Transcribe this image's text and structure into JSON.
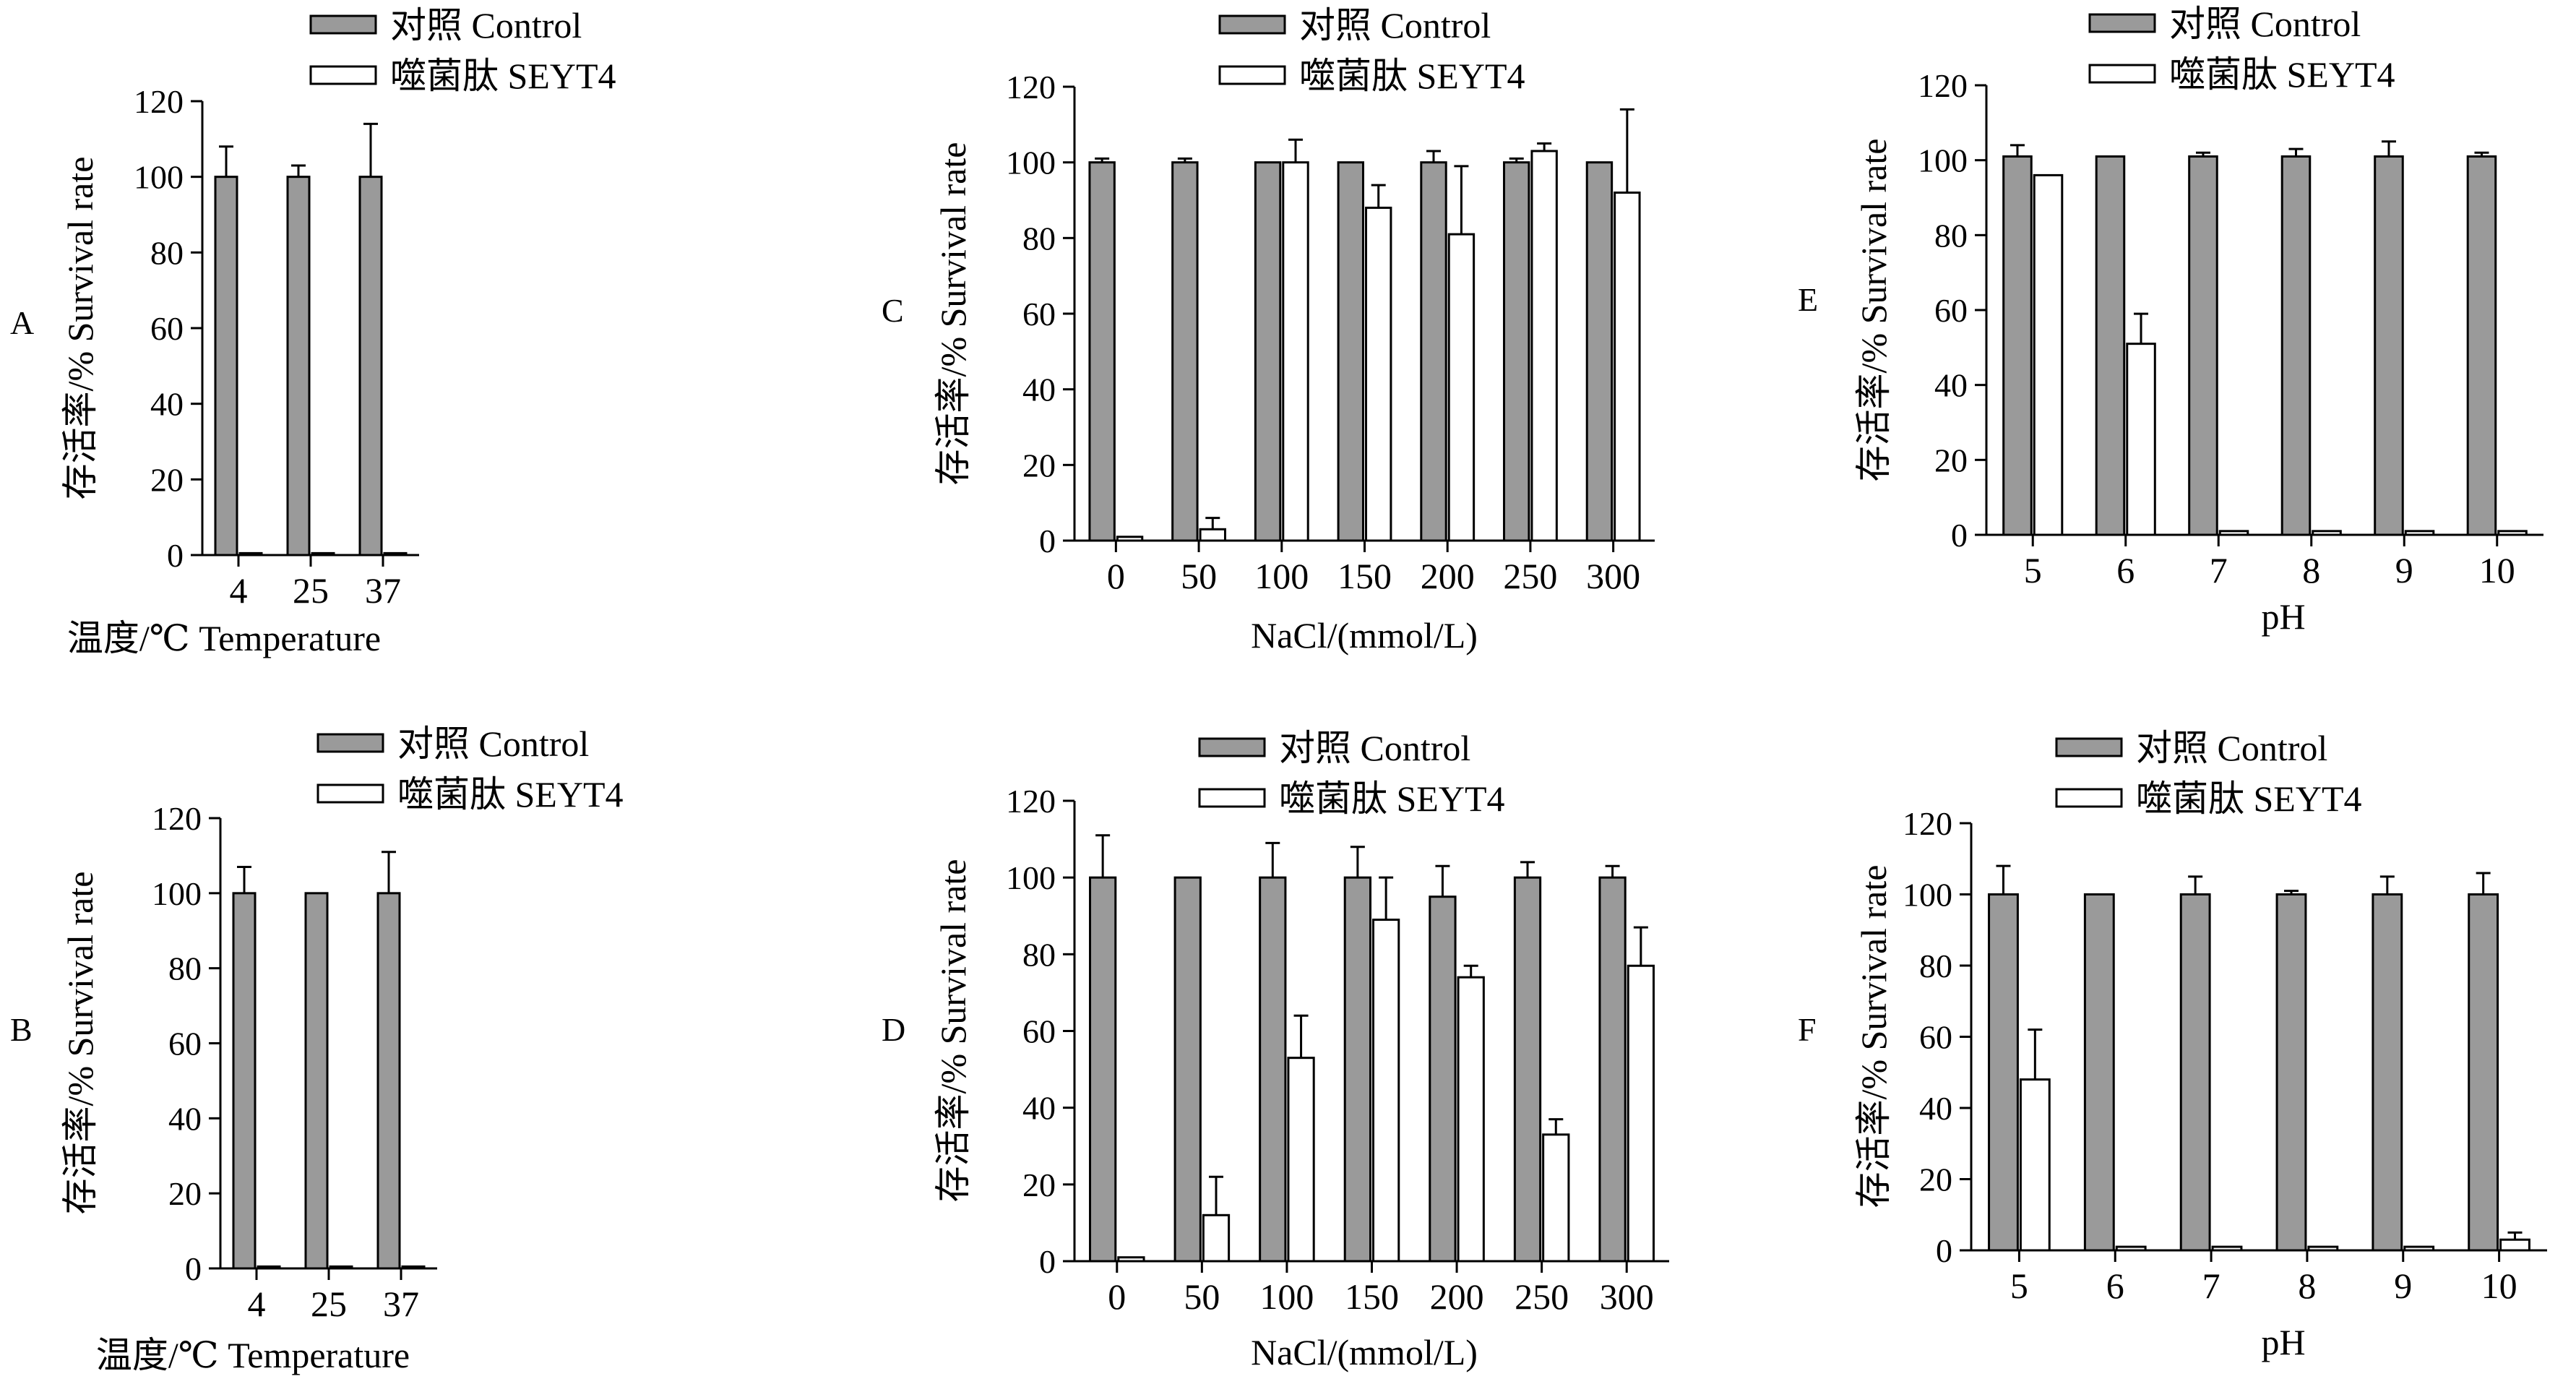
{
  "legend": {
    "control": "对照 Control",
    "phage": "噬菌肽 SEYT4"
  },
  "colors": {
    "control_fill": "#9a9a9a",
    "phage_fill": "#ffffff",
    "stroke": "#000000"
  },
  "chart_data": [
    {
      "panel": "A",
      "type": "bar",
      "ylabel": "存活率/% Survival rate",
      "xlabel": "温度/℃ Temperature",
      "ylim": [
        0,
        120
      ],
      "yticks": [
        0,
        20,
        40,
        60,
        80,
        100,
        120
      ],
      "categories": [
        "4",
        "25",
        "37"
      ],
      "series": [
        {
          "name": "对照 Control",
          "values": [
            100,
            100,
            100
          ],
          "errors": [
            8,
            3,
            14
          ]
        },
        {
          "name": "噬菌肽 SEYT4",
          "values": [
            0.5,
            0.5,
            0.5
          ],
          "errors": [
            0,
            0,
            0
          ]
        }
      ]
    },
    {
      "panel": "B",
      "type": "bar",
      "ylabel": "存活率/% Survival rate",
      "xlabel": "温度/℃ Temperature",
      "ylim": [
        0,
        120
      ],
      "yticks": [
        0,
        20,
        40,
        60,
        80,
        100,
        120
      ],
      "categories": [
        "4",
        "25",
        "37"
      ],
      "series": [
        {
          "name": "对照 Control",
          "values": [
            100,
            100,
            100
          ],
          "errors": [
            7,
            0,
            11
          ]
        },
        {
          "name": "噬菌肽 SEYT4",
          "values": [
            0.5,
            0.5,
            0.5
          ],
          "errors": [
            0,
            0,
            0
          ]
        }
      ]
    },
    {
      "panel": "C",
      "type": "bar",
      "ylabel": "存活率/% Survival rate",
      "xlabel": "NaCl/(mmol/L)",
      "ylim": [
        0,
        120
      ],
      "yticks": [
        0,
        20,
        40,
        60,
        80,
        100,
        120
      ],
      "categories": [
        "0",
        "50",
        "100",
        "150",
        "200",
        "250",
        "300"
      ],
      "series": [
        {
          "name": "对照 Control",
          "values": [
            100,
            100,
            100,
            100,
            100,
            100,
            100
          ],
          "errors": [
            1,
            1,
            0,
            0,
            3,
            1,
            0
          ]
        },
        {
          "name": "噬菌肽 SEYT4",
          "values": [
            1,
            3,
            100,
            88,
            81,
            103,
            92
          ],
          "errors": [
            0,
            3,
            6,
            6,
            18,
            2,
            22
          ]
        }
      ]
    },
    {
      "panel": "D",
      "type": "bar",
      "ylabel": "存活率/% Survival rate",
      "xlabel": "NaCl/(mmol/L)",
      "ylim": [
        0,
        120
      ],
      "yticks": [
        0,
        20,
        40,
        60,
        80,
        100,
        120
      ],
      "categories": [
        "0",
        "50",
        "100",
        "150",
        "200",
        "250",
        "300"
      ],
      "series": [
        {
          "name": "对照 Control",
          "values": [
            100,
            100,
            100,
            100,
            95,
            100,
            100
          ],
          "errors": [
            11,
            0,
            9,
            8,
            8,
            4,
            3
          ]
        },
        {
          "name": "噬菌肽 SEYT4",
          "values": [
            1,
            12,
            53,
            89,
            74,
            33,
            77
          ],
          "errors": [
            0,
            10,
            11,
            11,
            3,
            4,
            10
          ]
        }
      ]
    },
    {
      "panel": "E",
      "type": "bar",
      "ylabel": "存活率/% Survival rate",
      "xlabel": "pH",
      "ylim": [
        0,
        120
      ],
      "yticks": [
        0,
        20,
        40,
        60,
        80,
        100,
        120
      ],
      "categories": [
        "5",
        "6",
        "7",
        "8",
        "9",
        "10"
      ],
      "series": [
        {
          "name": "对照 Control",
          "values": [
            101,
            101,
            101,
            101,
            101,
            101
          ],
          "errors": [
            3,
            0,
            1,
            2,
            4,
            1
          ]
        },
        {
          "name": "噬菌肽 SEYT4",
          "values": [
            96,
            51,
            1,
            1,
            1,
            1
          ],
          "errors": [
            0,
            8,
            0,
            0,
            0,
            0
          ]
        }
      ]
    },
    {
      "panel": "F",
      "type": "bar",
      "ylabel": "存活率/% Survival rate",
      "xlabel": "pH",
      "ylim": [
        0,
        120
      ],
      "yticks": [
        0,
        20,
        40,
        60,
        80,
        100,
        120
      ],
      "categories": [
        "5",
        "6",
        "7",
        "8",
        "9",
        "10"
      ],
      "series": [
        {
          "name": "对照 Control",
          "values": [
            100,
            100,
            100,
            100,
            100,
            100
          ],
          "errors": [
            8,
            0,
            5,
            1,
            5,
            6
          ]
        },
        {
          "name": "噬菌肽 SEYT4",
          "values": [
            48,
            1,
            1,
            1,
            1,
            3
          ],
          "errors": [
            14,
            0,
            0,
            0,
            0,
            2
          ]
        }
      ]
    }
  ]
}
